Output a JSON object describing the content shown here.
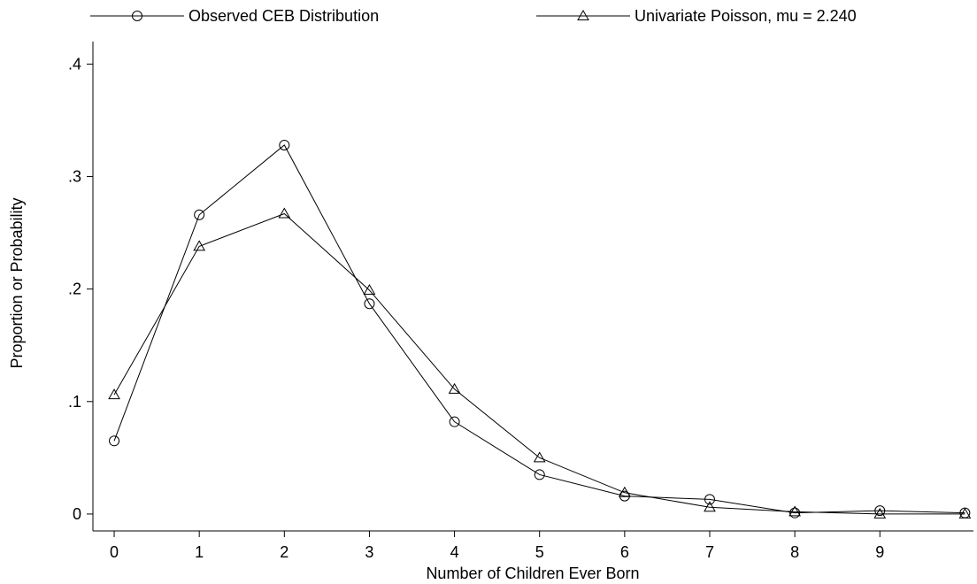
{
  "chart_data": {
    "type": "line",
    "xlabel": "Number of Children Ever Born",
    "ylabel": "Proportion or Probability",
    "x": [
      0,
      1,
      2,
      3,
      4,
      5,
      6,
      7,
      8,
      9,
      10
    ],
    "x_tick_values": [
      0,
      1,
      2,
      3,
      4,
      5,
      6,
      7,
      8,
      9
    ],
    "x_tick_labels": [
      "0",
      "1",
      "2",
      "3",
      "4",
      "5",
      "6",
      "7",
      "8",
      "9"
    ],
    "y_tick_values": [
      0,
      0.1,
      0.2,
      0.3,
      0.4
    ],
    "y_tick_labels": [
      "0",
      ".1",
      ".2",
      ".3",
      ".4"
    ],
    "xlim": [
      -0.25,
      10.1
    ],
    "ylim": [
      -0.015,
      0.42
    ],
    "grid": false,
    "legend_position": "top",
    "series": [
      {
        "name": "Observed CEB Distribution",
        "marker": "circle",
        "values": [
          0.065,
          0.266,
          0.328,
          0.187,
          0.082,
          0.035,
          0.016,
          0.013,
          0.001,
          0.003,
          0.001
        ]
      },
      {
        "name": "Univariate Poisson, mu = 2.240",
        "marker": "triangle",
        "values": [
          0.106,
          0.238,
          0.267,
          0.199,
          0.111,
          0.05,
          0.019,
          0.006,
          0.002,
          0.0,
          0.0
        ]
      }
    ]
  }
}
